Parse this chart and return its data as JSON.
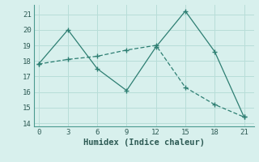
{
  "xlabel": "Humidex (Indice chaleur)",
  "line1_x": [
    0,
    3,
    6,
    9,
    12,
    15,
    18,
    21
  ],
  "line1_y": [
    17.8,
    20.0,
    17.5,
    16.1,
    18.9,
    21.2,
    18.6,
    14.4
  ],
  "line2_x": [
    0,
    3,
    6,
    9,
    12,
    15,
    18,
    21
  ],
  "line2_y": [
    17.8,
    18.1,
    18.3,
    18.7,
    19.0,
    16.3,
    15.2,
    14.4
  ],
  "line_color": "#2d7e72",
  "bg_color": "#d8f0ed",
  "grid_color": "#b8ddd8",
  "xlim": [
    -0.5,
    22
  ],
  "ylim": [
    13.8,
    21.6
  ],
  "xticks": [
    0,
    3,
    6,
    9,
    12,
    15,
    18,
    21
  ],
  "yticks": [
    14,
    15,
    16,
    17,
    18,
    19,
    20,
    21
  ],
  "tick_fontsize": 6.5,
  "xlabel_fontsize": 7.5
}
